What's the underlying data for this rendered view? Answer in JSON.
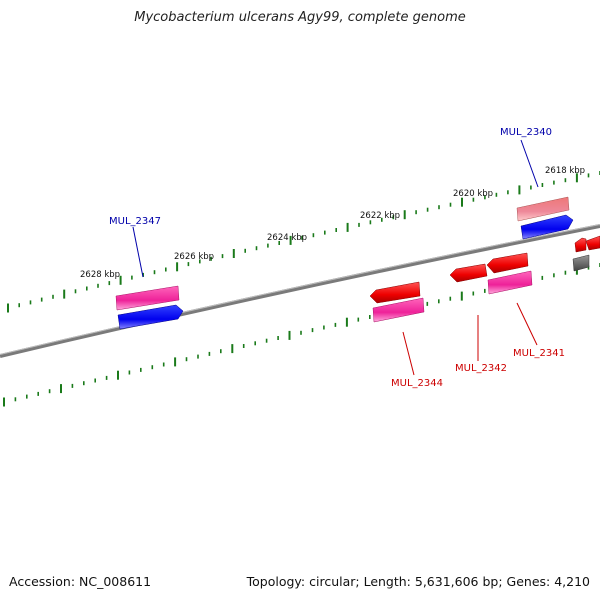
{
  "title": "Mycobacterium ulcerans Agy99, complete genome",
  "footer": {
    "accession": "Accession: NC_008611",
    "stats": "Topology: circular; Length: 5,631,606 bp; Genes: 4,210"
  },
  "colors": {
    "backbone": "#808080",
    "tick": "#1a7a1a",
    "forward_label": "#0000aa",
    "reverse_label": "#cc0000",
    "forward_gene": "#0000ee",
    "reverse_gene": "#ee0000",
    "pink_gene": "#ee3399",
    "light_pink_gene": "#ee7788",
    "gray_gene": "#666666"
  },
  "scale_labels": [
    "2618 kbp",
    "2620 kbp",
    "2622 kbp",
    "2624 kbp",
    "2626 kbp",
    "2628 kbp"
  ],
  "gene_labels": {
    "MUL_2340": "MUL_2340",
    "MUL_2347": "MUL_2347",
    "MUL_2344": "MUL_2344",
    "MUL_2342": "MUL_2342",
    "MUL_2341": "MUL_2341"
  }
}
